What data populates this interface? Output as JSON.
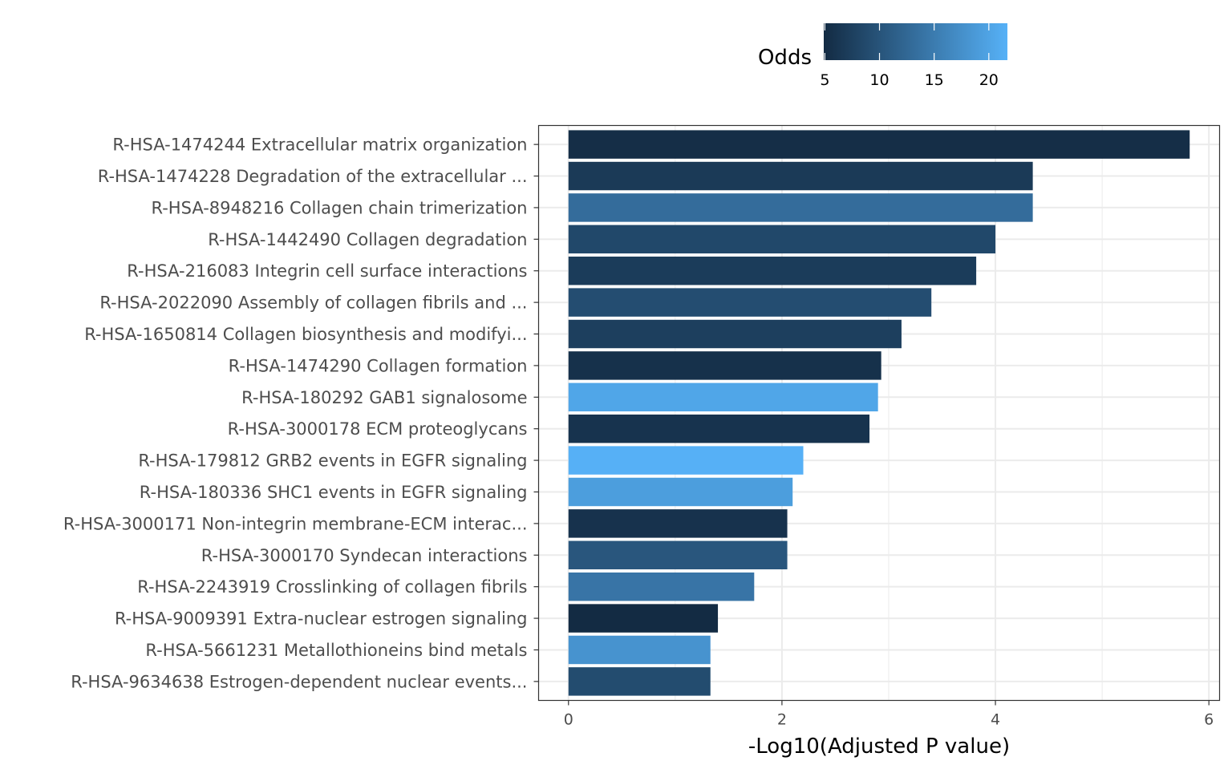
{
  "chart_data": {
    "type": "bar",
    "orientation": "horizontal",
    "xlabel": "-Log10(Adjusted P value)",
    "ylabel": "",
    "xlim": [
      -0.28,
      6.1
    ],
    "xticks": [
      0,
      2,
      4,
      6
    ],
    "grid": true,
    "legend": {
      "title": "Odds",
      "position": "top",
      "type": "colorbar",
      "range": [
        4.9,
        21.7
      ],
      "ticks": [
        5,
        10,
        15,
        20
      ],
      "low_color": "#132B43",
      "high_color": "#56B1F7"
    },
    "categories": [
      "R-HSA-1474244 Extracellular matrix organization",
      "R-HSA-1474228 Degradation of the extracellular ...",
      "R-HSA-8948216 Collagen chain trimerization",
      "R-HSA-1442490 Collagen degradation",
      "R-HSA-216083 Integrin cell surface interactions",
      "R-HSA-2022090 Assembly of collagen fibrils and ...",
      "R-HSA-1650814 Collagen biosynthesis and modifyi...",
      "R-HSA-1474290 Collagen formation",
      "R-HSA-180292 GAB1 signalosome",
      "R-HSA-3000178 ECM proteoglycans",
      "R-HSA-179812 GRB2 events in EGFR signaling",
      "R-HSA-180336 SHC1 events in EGFR signaling",
      "R-HSA-3000171 Non-integrin membrane-ECM interac...",
      "R-HSA-3000170 Syndecan interactions",
      "R-HSA-2243919 Crosslinking of collagen fibrils",
      "R-HSA-9009391 Extra-nuclear estrogen signaling",
      "R-HSA-5661231 Metallothioneins bind metals",
      "R-HSA-9634638 Estrogen-dependent nuclear events..."
    ],
    "values": [
      5.82,
      4.35,
      4.35,
      4.0,
      3.82,
      3.4,
      3.12,
      2.93,
      2.9,
      2.82,
      2.2,
      2.1,
      2.05,
      2.05,
      1.74,
      1.4,
      1.33,
      1.33
    ],
    "odds": [
      5.3,
      6.8,
      13.1,
      8.5,
      7.0,
      9.2,
      7.4,
      5.6,
      20.3,
      5.9,
      21.6,
      19.3,
      5.8,
      10.3,
      14.1,
      4.9,
      18.0,
      9.0
    ]
  }
}
